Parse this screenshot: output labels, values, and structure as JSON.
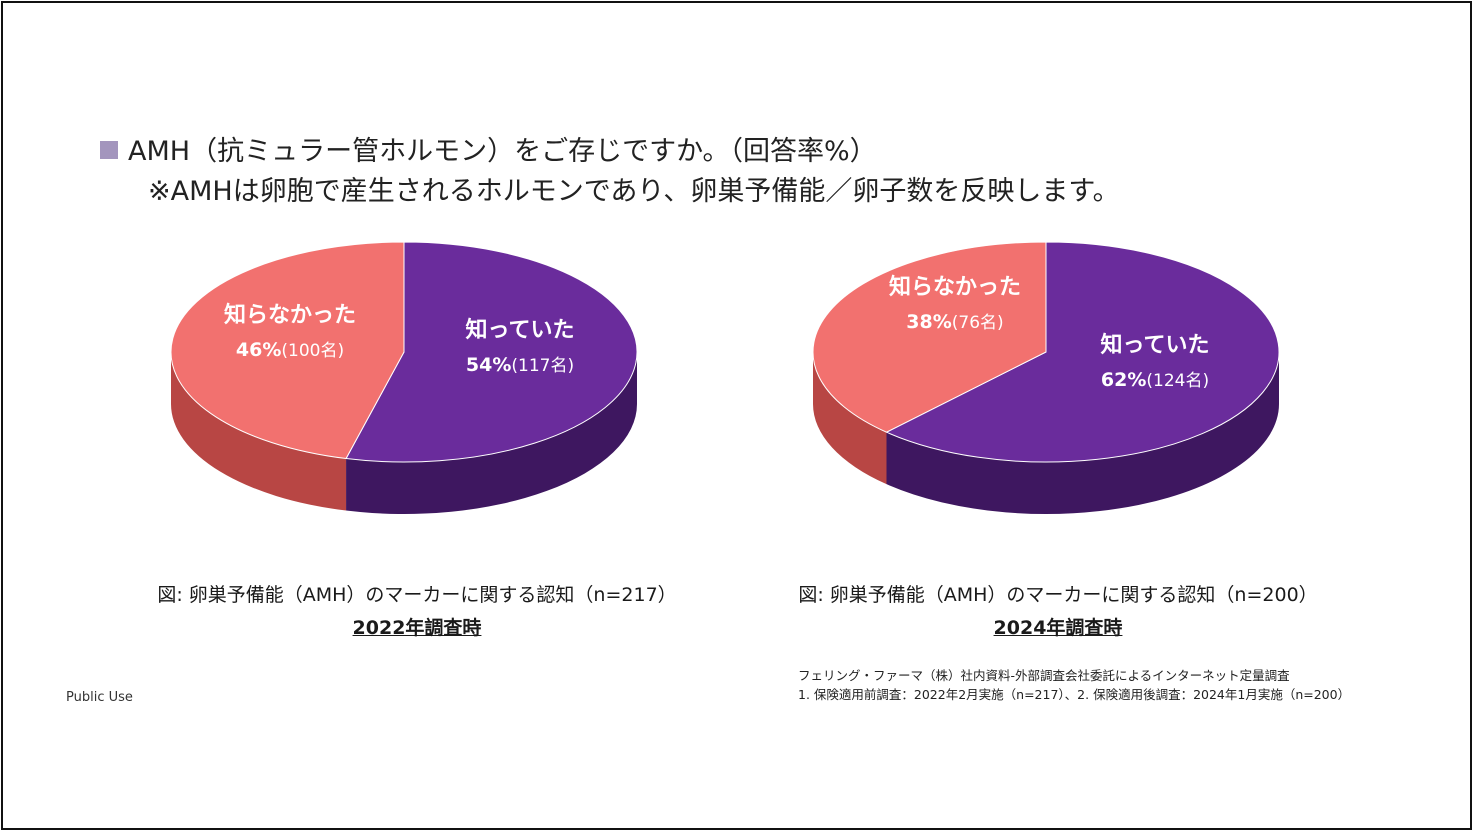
{
  "heading": {
    "line1": "AMH（抗ミュラー管ホルモン）をご存じですか。（回答率%）",
    "line2": "※AMHは卵胞で産生されるホルモンであり、卵巣予備能／卵子数を反映します。"
  },
  "chart_data": [
    {
      "type": "pie",
      "title": "図: 卵巣予備能（AMH）のマーカーに関する認知（n=217）",
      "subtitle": "2022年調査時",
      "slices": [
        {
          "label": "知っていた",
          "value": 54,
          "value_text": "54%",
          "count_text": "(117名)",
          "color": "#6a2c9c",
          "side": "#3e1760"
        },
        {
          "label": "知らなかった",
          "value": 46,
          "value_text": "46%",
          "count_text": "(100名)",
          "color": "#f2716f",
          "side": "#b84644"
        }
      ]
    },
    {
      "type": "pie",
      "title": "図: 卵巣予備能（AMH）のマーカーに関する認知（n=200）",
      "subtitle": "2024年調査時",
      "slices": [
        {
          "label": "知っていた",
          "value": 62,
          "value_text": "62%",
          "count_text": "(124名)",
          "color": "#6a2c9c",
          "side": "#3e1760"
        },
        {
          "label": "知らなかった",
          "value": 38,
          "value_text": "38%",
          "count_text": "(76名)",
          "color": "#f2716f",
          "side": "#b84644"
        }
      ]
    }
  ],
  "footer": {
    "public_use": "Public Use",
    "source_line1": "フェリング・ファーマ（株）社内資料-外部調査会社委託によるインターネット定量調査",
    "source_line2": "1. 保険適用前調査：2022年2月実施（n=217）、2. 保険適用後調査：2024年1月実施（n=200）"
  }
}
